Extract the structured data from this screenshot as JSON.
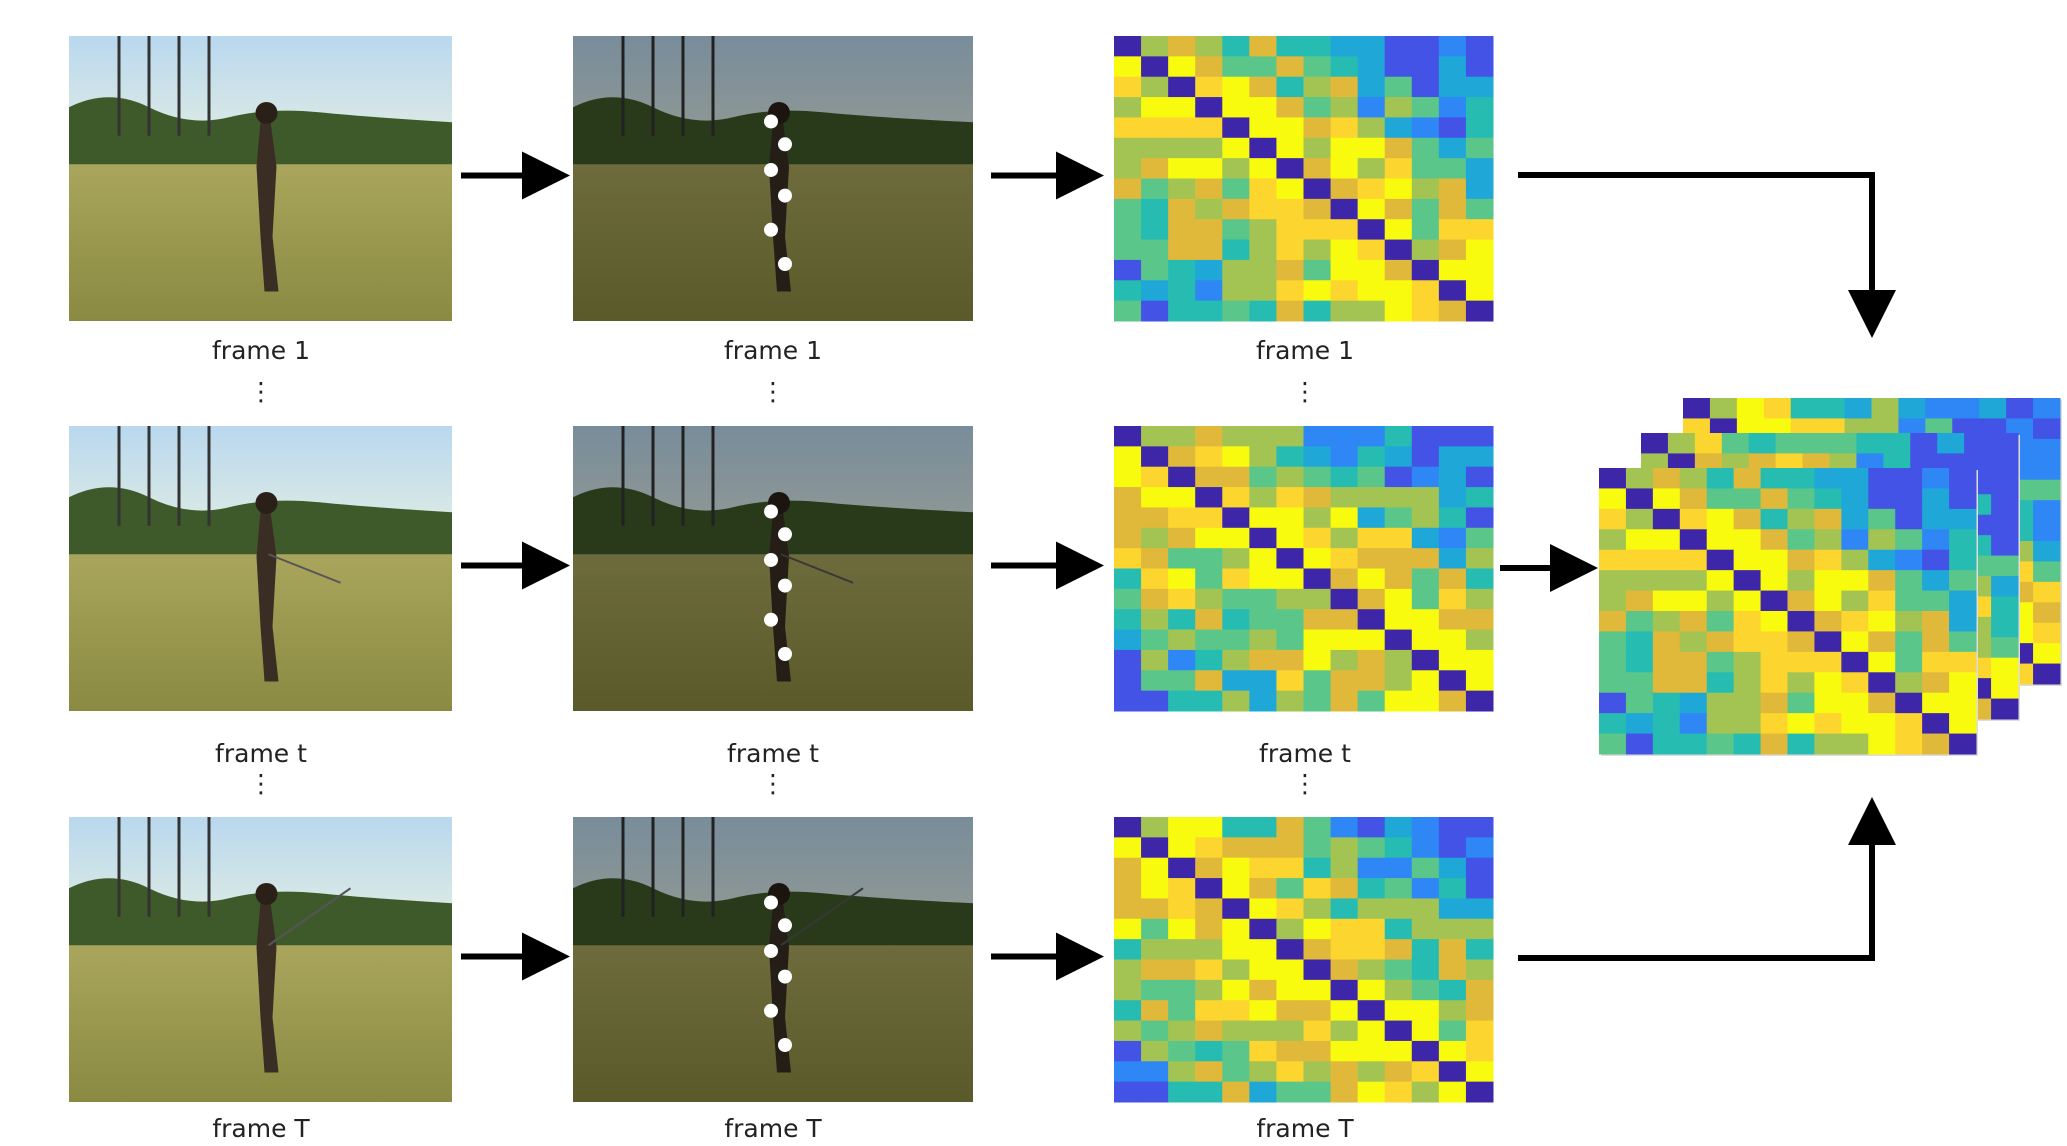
{
  "rows": [
    {
      "labels": [
        "frame 1",
        "frame 1",
        "frame 1"
      ]
    },
    {
      "labels": [
        "frame t",
        "frame t",
        "frame t"
      ]
    },
    {
      "labels": [
        "frame T",
        "frame T",
        "frame T"
      ]
    }
  ]
}
